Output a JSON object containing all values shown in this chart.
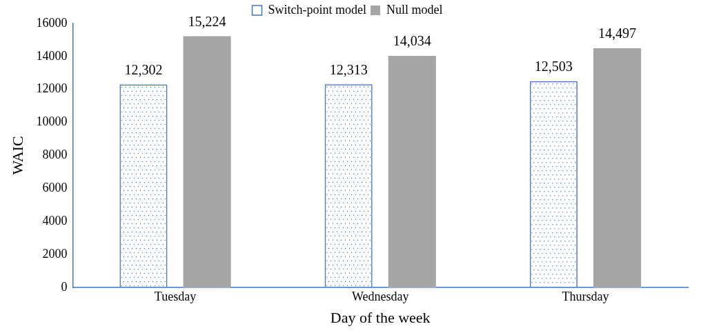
{
  "chart_data": {
    "type": "bar",
    "xlabel": "Day of the week",
    "ylabel": "WAIC",
    "categories": [
      "Tuesday",
      "Wednesday",
      "Thursday"
    ],
    "series": [
      {
        "name": "Switch-point model",
        "color": "#4472c4",
        "values": [
          12302,
          12313,
          12503
        ],
        "value_labels": [
          "12,302",
          "12,313",
          "12,503"
        ]
      },
      {
        "name": "Null model",
        "color": "#a5a5a5",
        "values": [
          15224,
          14034,
          14497
        ],
        "value_labels": [
          "15,224",
          "14,034",
          "14,497"
        ]
      }
    ],
    "ylim": [
      0,
      16000
    ],
    "yticks": [
      0,
      2000,
      4000,
      6000,
      8000,
      10000,
      12000,
      14000,
      16000
    ],
    "grid": false,
    "legend": "top"
  }
}
